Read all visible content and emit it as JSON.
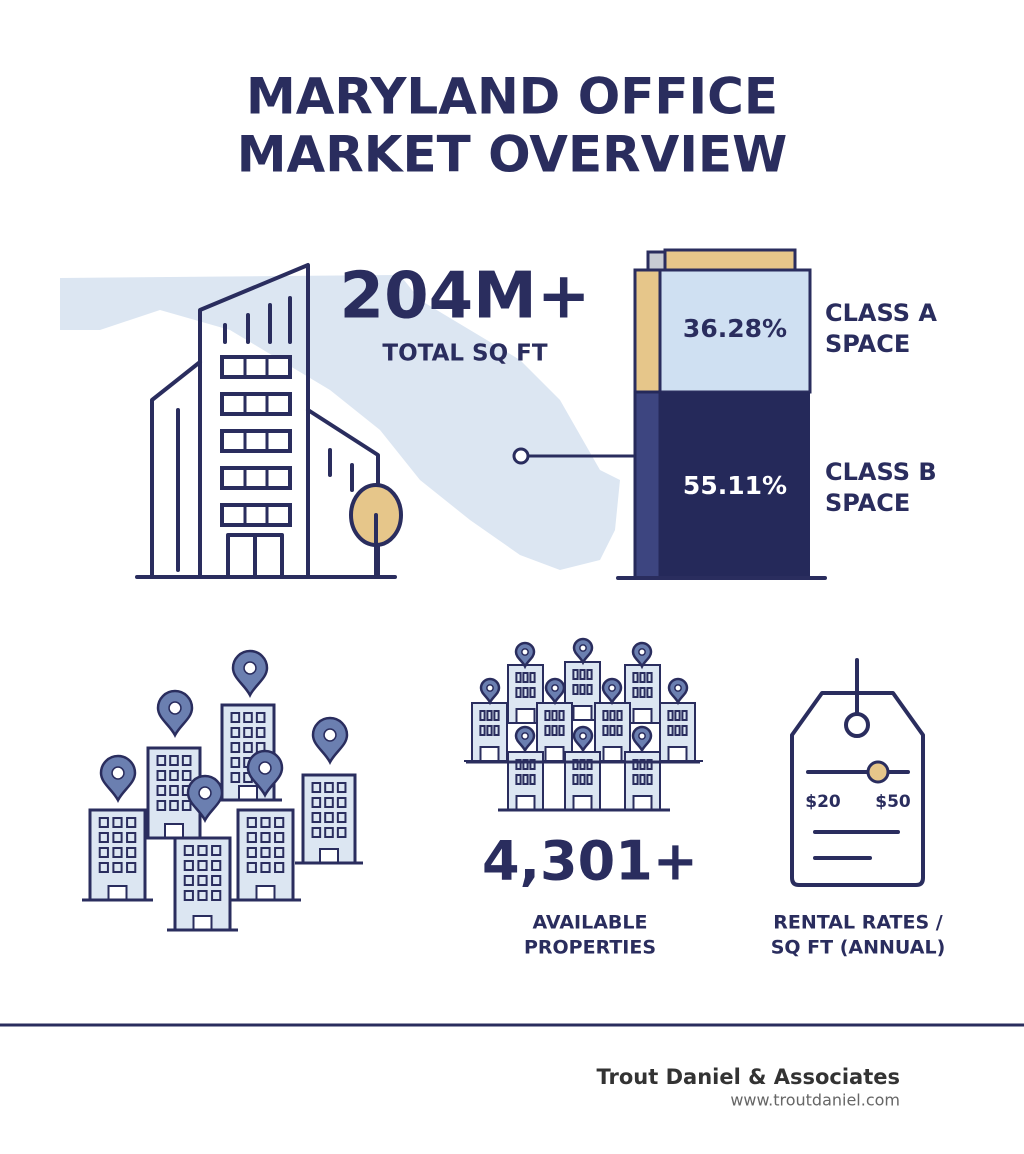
{
  "title": [
    "MARYLAND OFFICE",
    "MARKET OVERVIEW"
  ],
  "total": {
    "value": "204M+",
    "label": "TOTAL SQ FT"
  },
  "classes": [
    {
      "value": "36.28%",
      "label": [
        "CLASS A",
        "SPACE"
      ]
    },
    {
      "value": "55.11%",
      "label": [
        "CLASS B",
        "SPACE"
      ]
    }
  ],
  "properties": {
    "value": "4,301+",
    "label": [
      "AVAILABLE",
      "PROPERTIES"
    ]
  },
  "rental": {
    "tag_labels": [
      "$20",
      "$50"
    ],
    "label": [
      "RENTAL RATES /",
      "SQ FT (ANNUAL)"
    ]
  },
  "footer": {
    "company": "Trout Daniel & Associates",
    "url": "www.troutdaniel.com"
  }
}
